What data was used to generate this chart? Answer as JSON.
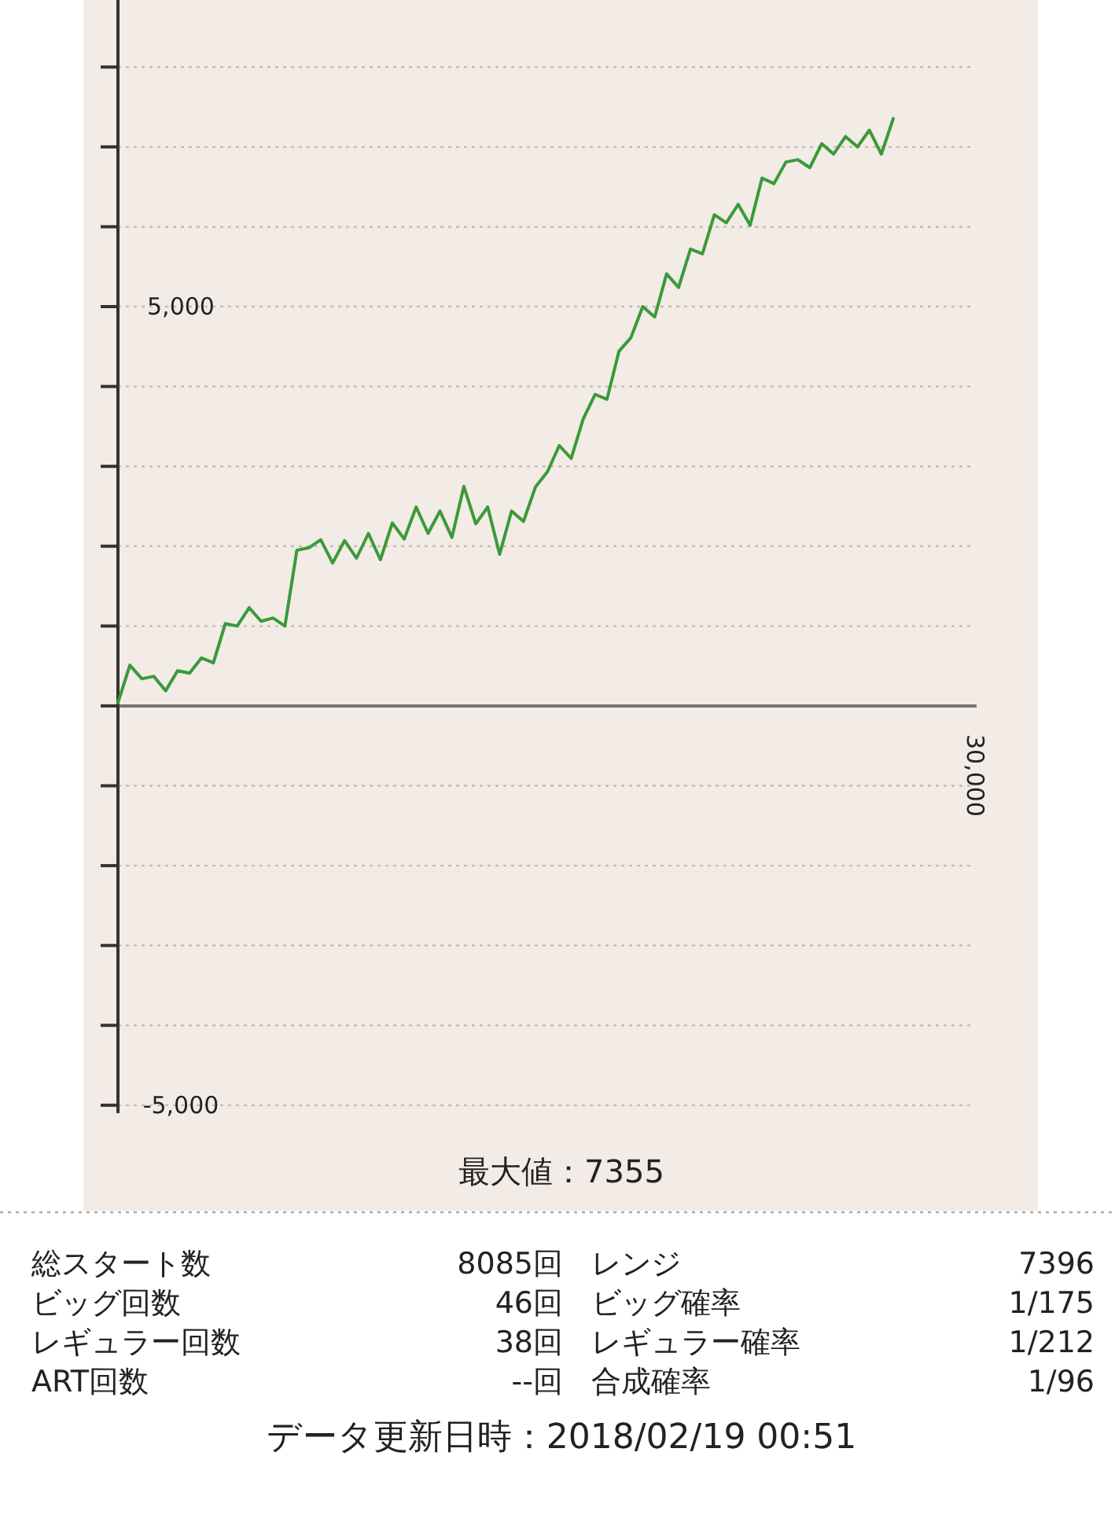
{
  "chart_data": [
    {
      "type": "line",
      "color": "#3a9a3a",
      "grid": "y",
      "marker": "none",
      "line_style": "solid",
      "legend": false,
      "ylim": [
        -5100,
        8800
      ],
      "yticks": [
        {
          "value": -5000,
          "label": "-5,000"
        },
        {
          "value": -4000,
          "label": null
        },
        {
          "value": -3000,
          "label": null
        },
        {
          "value": -2000,
          "label": null
        },
        {
          "value": -1000,
          "label": null
        },
        {
          "value": 0,
          "label": null
        },
        {
          "value": 1000,
          "label": null
        },
        {
          "value": 2000,
          "label": null
        },
        {
          "value": 3000,
          "label": null
        },
        {
          "value": 4000,
          "label": null
        },
        {
          "value": 5000,
          "label": "5,000"
        },
        {
          "value": 6000,
          "label": null
        },
        {
          "value": 7000,
          "label": null
        },
        {
          "value": 8000,
          "label": null
        }
      ],
      "categories": [
        null,
        null,
        null,
        null,
        null,
        null,
        null,
        null,
        null,
        null,
        null,
        null,
        null,
        null,
        null,
        null,
        null,
        null,
        null,
        null,
        null,
        null,
        null,
        null,
        null,
        null,
        null,
        null,
        null,
        null,
        null,
        null,
        null,
        null,
        null,
        null,
        null,
        null,
        null,
        null,
        null,
        null,
        null,
        null,
        null,
        null,
        null,
        null,
        null,
        null,
        null,
        null,
        null,
        null,
        null,
        null,
        null,
        null,
        null,
        null,
        null,
        null,
        null,
        null,
        null,
        null
      ],
      "values": [
        40,
        510,
        340,
        370,
        190,
        440,
        410,
        600,
        540,
        1030,
        1000,
        1230,
        1060,
        1100,
        1000,
        1950,
        1980,
        2080,
        1790,
        2070,
        1850,
        2160,
        1830,
        2290,
        2090,
        2490,
        2160,
        2440,
        2110,
        2750,
        2280,
        2490,
        1900,
        2440,
        2310,
        2740,
        2930,
        3260,
        3100,
        3590,
        3900,
        3840,
        4440,
        4610,
        5000,
        4870,
        5410,
        5240,
        5720,
        5660,
        6150,
        6050,
        6280,
        6020,
        6610,
        6540,
        6810,
        6840,
        6740,
        7040,
        6910,
        7130,
        7000,
        7210,
        6910,
        7355
      ],
      "annotations": [
        "30,000",
        "最大値：7355"
      ]
    },
    {
      "type": "other",
      "annotations": [
        "総スタート数",
        "8085回",
        "レンジ",
        "7396",
        "ビッグ回数",
        "46回",
        "ビッグ確率",
        "1/175",
        "レギュラー回数",
        "38回",
        "レギュラー確率",
        "1/212",
        "ART回数",
        "--回",
        "合成確率",
        "1/96",
        "データ更新日時：2018/02/19  00:51"
      ]
    }
  ]
}
